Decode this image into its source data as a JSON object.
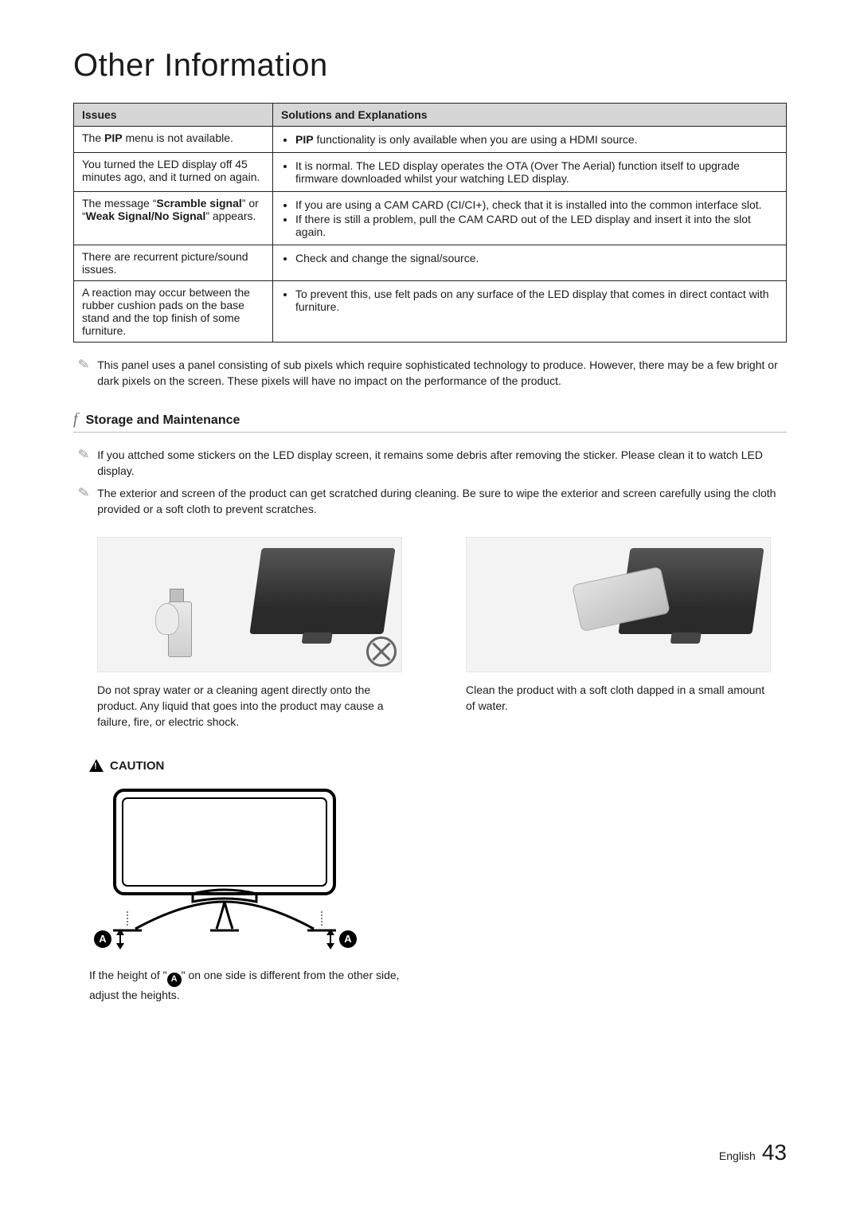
{
  "title": "Other Information",
  "table": {
    "headers": [
      "Issues",
      "Solutions and Explanations"
    ],
    "rows": [
      {
        "issue_html": "The <b>PIP</b> menu is not available.",
        "sol_html": [
          "<b>PIP</b> functionality is only available when you are using a HDMI source."
        ]
      },
      {
        "issue_html": "You turned the LED display off 45 minutes ago, and it turned on again.",
        "sol_html": [
          "It is normal. The LED display operates the OTA (Over The Aerial) function itself to upgrade firmware downloaded whilst your watching LED display."
        ]
      },
      {
        "issue_html": "The message “<b>Scramble signal</b>” or “<b>Weak Signal/No Signal</b>” appears.",
        "sol_html": [
          "If you are using a CAM CARD (CI/CI+), check that it is installed into the common interface slot.",
          "If there is still a problem, pull the CAM CARD out of the LED display and insert it into the slot again."
        ]
      },
      {
        "issue_html": "There are recurrent picture/sound issues.",
        "sol_html": [
          "Check and change the signal/source."
        ]
      },
      {
        "issue_html": "A reaction may occur between the rubber cushion pads on the base stand and the top finish of some furniture.",
        "sol_html": [
          "To prevent this, use felt pads on any surface of the LED display that comes in direct contact with furniture."
        ]
      }
    ]
  },
  "top_note": "This panel uses a panel consisting of sub pixels which require sophisticated technology to produce. However, there may be a few bright or dark pixels on the screen. These pixels will have no impact on the performance of the product.",
  "section": {
    "mark": "f",
    "title": "Storage and Maintenance"
  },
  "notes": [
    "If you attched some stickers on the LED display screen, it remains some debris after removing the sticker. Please clean it to watch LED display.",
    "The exterior and screen of the product can get scratched during cleaning. Be sure to wipe the exterior and screen carefully using the cloth provided or a soft cloth to prevent scratches."
  ],
  "fig_captions": [
    "Do not spray water or a cleaning agent directly onto the product. Any liquid that goes into the product may cause a failure, fire, or electric shock.",
    "Clean the product with a soft cloth dapped in a small amount of water."
  ],
  "caution": {
    "label": "CAUTION",
    "marker": "A",
    "caption_pre": "If the height of \"",
    "caption_post": "\" on one side is different from the other side, adjust the heights."
  },
  "footer": {
    "lang": "English",
    "page": "43"
  },
  "colors": {
    "header_bg": "#d6d6d6",
    "border": "#222222",
    "text": "#1b1b1b",
    "rule": "#bdbdbd",
    "note_icon": "#9a9a9a"
  }
}
